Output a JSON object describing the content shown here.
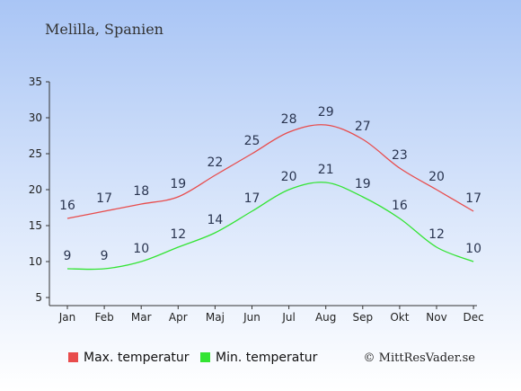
{
  "chart_data": {
    "type": "line",
    "title": "Melilla, Spanien",
    "categories": [
      "Jan",
      "Feb",
      "Mar",
      "Apr",
      "Maj",
      "Jun",
      "Jul",
      "Aug",
      "Sep",
      "Okt",
      "Nov",
      "Dec"
    ],
    "series": [
      {
        "name": "Max. temperatur",
        "color": "#e84c4c",
        "values": [
          16,
          17,
          18,
          19,
          22,
          25,
          28,
          29,
          27,
          23,
          20,
          17
        ]
      },
      {
        "name": "Min. temperatur",
        "color": "#33e433",
        "values": [
          9,
          9,
          10,
          12,
          14,
          17,
          20,
          21,
          19,
          16,
          12,
          10
        ]
      }
    ],
    "ylim": [
      5,
      35
    ],
    "yticks": [
      5,
      10,
      15,
      20,
      25,
      30,
      35
    ],
    "grid": false,
    "legend_position": "bottom"
  },
  "credit": "© MittResVader.se",
  "colors": {
    "background_top": "#a8c4f4",
    "background_bottom": "#ffffff",
    "axis": "#333333"
  }
}
